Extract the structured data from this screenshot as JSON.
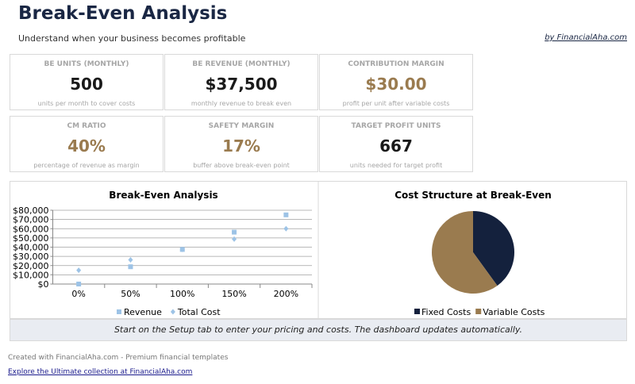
{
  "header": {
    "title": "Break-Even Analysis",
    "subtitle": "Understand when your business becomes profitable",
    "link": "by FinancialAha.com"
  },
  "cards": [
    {
      "title": "BE UNITS (MONTHLY)",
      "value": "500",
      "note": "units per month to cover costs",
      "accent": false
    },
    {
      "title": "BE REVENUE (MONTHLY)",
      "value": "$37,500",
      "note": "monthly revenue to break even",
      "accent": false
    },
    {
      "title": "CONTRIBUTION MARGIN",
      "value": "$30.00",
      "note": "profit per unit after variable costs",
      "accent": true
    },
    {
      "title": "CM RATIO",
      "value": "40%",
      "note": "percentage of revenue as margin",
      "accent": true
    },
    {
      "title": "SAFETY MARGIN",
      "value": "17%",
      "note": "buffer above break-even point",
      "accent": true
    },
    {
      "title": "TARGET PROFIT UNITS",
      "value": "667",
      "note": "units needed for target profit",
      "accent": false
    }
  ],
  "chart_data": [
    {
      "type": "scatter",
      "title": "Break-Even Analysis",
      "categories": [
        "0%",
        "50%",
        "100%",
        "150%",
        "200%"
      ],
      "series": [
        {
          "name": "Revenue",
          "color": "#9dc3e6",
          "marker": "square",
          "values": [
            0,
            18750,
            37500,
            56250,
            75000
          ]
        },
        {
          "name": "Total Cost",
          "color": "#9dc3e6",
          "marker": "diamond",
          "values": [
            15000,
            26250,
            37500,
            48750,
            60000
          ]
        }
      ],
      "ylim": [
        0,
        80000
      ],
      "yticks": [
        {
          "value": 0,
          "label": "$0"
        },
        {
          "value": 10000,
          "label": "$10,000"
        },
        {
          "value": 20000,
          "label": "$20,000"
        },
        {
          "value": 30000,
          "label": "$30,000"
        },
        {
          "value": 40000,
          "label": "$40,000"
        },
        {
          "value": 50000,
          "label": "$50,000"
        },
        {
          "value": 60000,
          "label": "$60,000"
        },
        {
          "value": 70000,
          "label": "$70,000"
        },
        {
          "value": 80000,
          "label": "$80,000"
        }
      ],
      "grid": true,
      "legend": "bottom"
    },
    {
      "type": "pie",
      "title": "Cost Structure at Break-Even",
      "categories": [
        "Fixed Costs",
        "Variable Costs"
      ],
      "values": [
        15000,
        22500
      ],
      "colors": [
        "#14213d",
        "#9a7b4f"
      ],
      "legend": "bottom"
    }
  ],
  "notice": "Start on the Setup tab to enter your pricing and costs. The dashboard updates automatically.",
  "footer": {
    "credit": "Created with FinancialAha.com - Premium financial templates",
    "link": "Explore the Ultimate collection at FinancialAha.com"
  }
}
